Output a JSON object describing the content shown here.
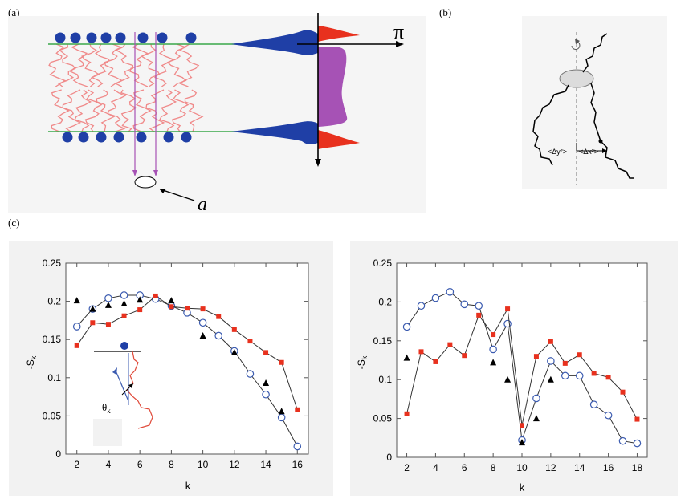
{
  "labels": {
    "a": "(a)",
    "b": "(b)",
    "c": "(c)"
  },
  "panel_a": {
    "pi_symbol": "π",
    "area_symbol": "a"
  },
  "panel_b": {
    "dy_label": "<Δy²>",
    "dx_label": "<Δx²>"
  },
  "inset": {
    "theta_label": "θ",
    "theta_sub": "k"
  },
  "colors": {
    "open": "#3b5bb0",
    "square": "#e8311e",
    "triangle": "#000000",
    "head": "#1f3fa6",
    "tail": "#f08080",
    "line": "#333333"
  },
  "chart_data": [
    {
      "type": "line",
      "xlabel": "k",
      "ylabel": "-S",
      "ylabel_sub": "k",
      "xlim": [
        1.3,
        16.7
      ],
      "ylim": [
        0,
        0.25
      ],
      "xticks": [
        2,
        4,
        6,
        8,
        10,
        12,
        14,
        16
      ],
      "yticks": [
        0,
        0.05,
        0.1,
        0.15,
        0.2,
        0.25
      ],
      "ytick_labels": [
        "0",
        "0.05",
        "0.1",
        "0.15",
        "0.2",
        "0.25"
      ],
      "series": [
        {
          "marker": "open-circle",
          "connected": true,
          "x": [
            2,
            3,
            4,
            5,
            6,
            7,
            8,
            9,
            10,
            11,
            12,
            13,
            14,
            15,
            16
          ],
          "y": [
            0.167,
            0.19,
            0.204,
            0.208,
            0.208,
            0.203,
            0.194,
            0.185,
            0.172,
            0.155,
            0.135,
            0.105,
            0.078,
            0.048,
            0.01
          ]
        },
        {
          "marker": "filled-square",
          "connected": true,
          "x": [
            2,
            3,
            4,
            5,
            6,
            7,
            8,
            9,
            10,
            11,
            12,
            13,
            14,
            15,
            16
          ],
          "y": [
            0.142,
            0.172,
            0.17,
            0.181,
            0.189,
            0.207,
            0.193,
            0.191,
            0.19,
            0.18,
            0.163,
            0.148,
            0.133,
            0.12,
            0.058
          ]
        },
        {
          "marker": "filled-triangle",
          "connected": false,
          "x": [
            2,
            3,
            4,
            5,
            6,
            8,
            10,
            12,
            14,
            15
          ],
          "y": [
            0.201,
            0.19,
            0.195,
            0.197,
            0.202,
            0.201,
            0.155,
            0.133,
            0.093,
            0.056
          ]
        }
      ]
    },
    {
      "type": "line",
      "xlabel": "k",
      "ylabel": "-S",
      "ylabel_sub": "k",
      "xlim": [
        1.3,
        18.7
      ],
      "ylim": [
        0,
        0.25
      ],
      "xticks": [
        2,
        4,
        6,
        8,
        10,
        12,
        14,
        16,
        18
      ],
      "yticks": [
        0,
        0.05,
        0.1,
        0.15,
        0.2,
        0.25
      ],
      "ytick_labels": [
        "0",
        "0.05",
        "0.1",
        "0.15",
        "0.2",
        "0.25"
      ],
      "series": [
        {
          "marker": "open-circle",
          "connected": true,
          "x": [
            2,
            3,
            4,
            5,
            6,
            7,
            8,
            9,
            10,
            11,
            12,
            13,
            14,
            15,
            16,
            17,
            18
          ],
          "y": [
            0.168,
            0.195,
            0.205,
            0.213,
            0.197,
            0.195,
            0.139,
            0.172,
            0.022,
            0.076,
            0.124,
            0.105,
            0.105,
            0.068,
            0.054,
            0.021,
            0.018
          ]
        },
        {
          "marker": "filled-square",
          "connected": true,
          "x": [
            2,
            3,
            4,
            5,
            6,
            7,
            8,
            9,
            10,
            11,
            12,
            13,
            14,
            15,
            16,
            17,
            18
          ],
          "y": [
            0.056,
            0.136,
            0.123,
            0.145,
            0.131,
            0.183,
            0.158,
            0.191,
            0.041,
            0.13,
            0.149,
            0.121,
            0.132,
            0.108,
            0.103,
            0.084,
            0.049
          ]
        },
        {
          "marker": "filled-triangle",
          "connected": false,
          "x": [
            2,
            8,
            9,
            10,
            11,
            12
          ],
          "y": [
            0.128,
            0.122,
            0.1,
            0.019,
            0.05,
            0.1
          ]
        }
      ]
    }
  ]
}
